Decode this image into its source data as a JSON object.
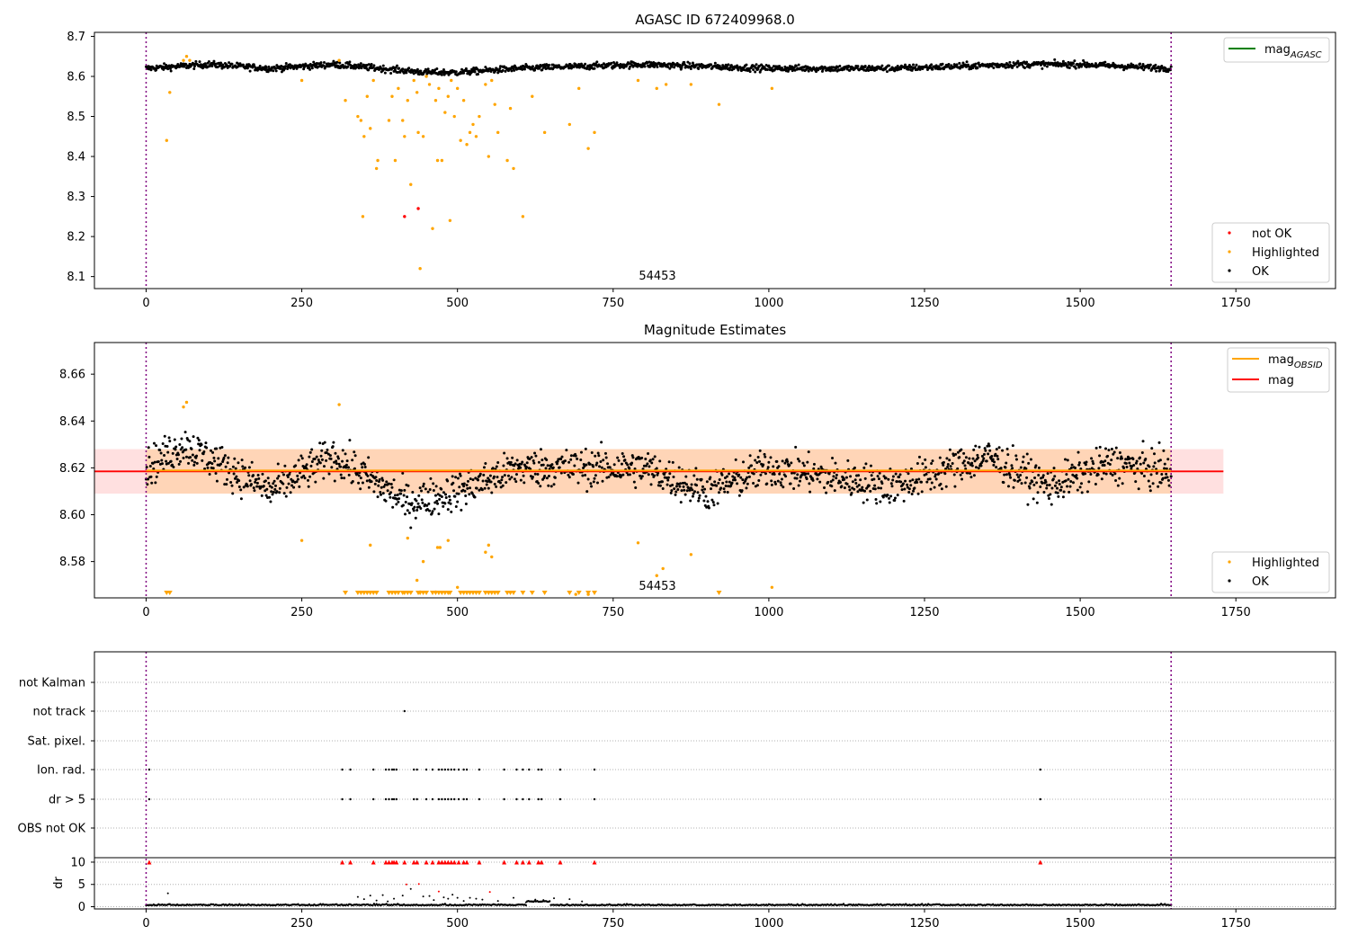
{
  "chart_data": [
    {
      "type": "scatter",
      "title": "AGASC ID 672409968.0",
      "xlim": [
        -83,
        1910
      ],
      "ylim": [
        8.07,
        8.71
      ],
      "x_ticks": [
        0,
        250,
        500,
        750,
        1000,
        1250,
        1500,
        1750
      ],
      "y_ticks": [
        8.1,
        8.2,
        8.3,
        8.4,
        8.5,
        8.6,
        8.7
      ],
      "y_tick_labels": [
        "8.1",
        "8.2",
        "8.3",
        "8.4",
        "8.5",
        "8.6",
        "8.7"
      ],
      "grid": false,
      "vlines": [
        0,
        1646
      ],
      "annotation": "54453",
      "legend_top": {
        "placement": "top-right",
        "entries": [
          {
            "label": "mag",
            "sub": "AGASC",
            "color": "#008000"
          }
        ]
      },
      "legend_bottom": {
        "placement": "bottom-right",
        "entries": [
          {
            "label": "not OK",
            "color": "#ff0000"
          },
          {
            "label": "Highlighted",
            "color": "#ffa500"
          },
          {
            "label": "OK",
            "color": "#000000"
          }
        ]
      },
      "series": [
        {
          "name": "OK",
          "color": "#000000",
          "baseline": 8.62,
          "points": [
            [
              0,
              8.62
            ],
            [
              100,
              8.63
            ],
            [
              200,
              8.62
            ],
            [
              300,
              8.63
            ],
            [
              450,
              8.61
            ],
            [
              500,
              8.61
            ],
            [
              600,
              8.62
            ],
            [
              800,
              8.63
            ],
            [
              1000,
              8.62
            ],
            [
              1200,
              8.62
            ],
            [
              1400,
              8.63
            ],
            [
              1500,
              8.63
            ],
            [
              1646,
              8.62
            ]
          ]
        },
        {
          "name": "Highlighted",
          "color": "#ffa500",
          "points": [
            [
              33,
              8.44
            ],
            [
              38,
              8.56
            ],
            [
              60,
              8.64
            ],
            [
              65,
              8.65
            ],
            [
              70,
              8.64
            ],
            [
              250,
              8.59
            ],
            [
              310,
              8.64
            ],
            [
              320,
              8.54
            ],
            [
              340,
              8.5
            ],
            [
              345,
              8.49
            ],
            [
              348,
              8.25
            ],
            [
              350,
              8.45
            ],
            [
              355,
              8.55
            ],
            [
              360,
              8.47
            ],
            [
              365,
              8.59
            ],
            [
              370,
              8.37
            ],
            [
              372,
              8.39
            ],
            [
              390,
              8.49
            ],
            [
              395,
              8.55
            ],
            [
              400,
              8.39
            ],
            [
              405,
              8.57
            ],
            [
              412,
              8.49
            ],
            [
              415,
              8.45
            ],
            [
              420,
              8.54
            ],
            [
              425,
              8.33
            ],
            [
              430,
              8.59
            ],
            [
              435,
              8.56
            ],
            [
              437,
              8.46
            ],
            [
              440,
              8.12
            ],
            [
              445,
              8.45
            ],
            [
              450,
              8.6
            ],
            [
              455,
              8.58
            ],
            [
              460,
              8.22
            ],
            [
              465,
              8.54
            ],
            [
              468,
              8.39
            ],
            [
              470,
              8.57
            ],
            [
              475,
              8.39
            ],
            [
              480,
              8.51
            ],
            [
              485,
              8.55
            ],
            [
              488,
              8.24
            ],
            [
              490,
              8.59
            ],
            [
              495,
              8.5
            ],
            [
              500,
              8.57
            ],
            [
              505,
              8.44
            ],
            [
              510,
              8.54
            ],
            [
              515,
              8.43
            ],
            [
              520,
              8.46
            ],
            [
              525,
              8.48
            ],
            [
              530,
              8.45
            ],
            [
              535,
              8.5
            ],
            [
              545,
              8.58
            ],
            [
              550,
              8.4
            ],
            [
              555,
              8.59
            ],
            [
              560,
              8.53
            ],
            [
              565,
              8.46
            ],
            [
              580,
              8.39
            ],
            [
              585,
              8.52
            ],
            [
              590,
              8.37
            ],
            [
              605,
              8.25
            ],
            [
              620,
              8.55
            ],
            [
              640,
              8.46
            ],
            [
              680,
              8.48
            ],
            [
              695,
              8.57
            ],
            [
              710,
              8.42
            ],
            [
              720,
              8.46
            ],
            [
              790,
              8.59
            ],
            [
              820,
              8.57
            ],
            [
              835,
              8.58
            ],
            [
              875,
              8.58
            ],
            [
              920,
              8.53
            ],
            [
              1005,
              8.57
            ]
          ]
        },
        {
          "name": "not OK",
          "color": "#ff0000",
          "points": [
            [
              415,
              8.25
            ],
            [
              437,
              8.27
            ]
          ]
        }
      ]
    },
    {
      "type": "scatter",
      "title": "Magnitude Estimates",
      "xlim": [
        -83,
        1910
      ],
      "ylim": [
        8.5645,
        8.6735
      ],
      "x_ticks": [
        0,
        250,
        500,
        750,
        1000,
        1250,
        1500,
        1750
      ],
      "y_ticks": [
        8.58,
        8.6,
        8.62,
        8.64,
        8.66
      ],
      "y_tick_labels": [
        "8.58",
        "8.60",
        "8.62",
        "8.64",
        "8.66"
      ],
      "grid": false,
      "vlines": [
        0,
        1646
      ],
      "annotation": "54453",
      "mag": 8.6185,
      "mag_obsid": 8.6185,
      "band": [
        8.609,
        8.628
      ],
      "band_x": [
        -83,
        1730
      ],
      "band2_x": [
        0,
        1646
      ],
      "legend_top": {
        "placement": "top-right",
        "entries": [
          {
            "label": "mag",
            "sub": "OBSID",
            "color": "#ffa500"
          },
          {
            "label": "mag",
            "color": "#ff0000"
          }
        ]
      },
      "legend_bottom": {
        "placement": "bottom-right",
        "entries": [
          {
            "label": "Highlighted",
            "color": "#ffa500"
          },
          {
            "label": "OK",
            "color": "#000000"
          }
        ]
      },
      "series": [
        {
          "name": "OK",
          "color": "#000000",
          "baseline": 8.619,
          "spread": 0.008,
          "points": [
            [
              0,
              8.62
            ],
            [
              60,
              8.63
            ],
            [
              200,
              8.61
            ],
            [
              300,
              8.625
            ],
            [
              420,
              8.605
            ],
            [
              500,
              8.61
            ],
            [
              600,
              8.62
            ],
            [
              800,
              8.62
            ],
            [
              900,
              8.61
            ],
            [
              1000,
              8.62
            ],
            [
              1200,
              8.612
            ],
            [
              1350,
              8.625
            ],
            [
              1450,
              8.612
            ],
            [
              1550,
              8.622
            ],
            [
              1646,
              8.618
            ]
          ]
        },
        {
          "name": "Highlighted",
          "color": "#ffa500",
          "points": [
            [
              60,
              8.646
            ],
            [
              65,
              8.648
            ],
            [
              250,
              8.589
            ],
            [
              310,
              8.647
            ],
            [
              360,
              8.587
            ],
            [
              420,
              8.59
            ],
            [
              435,
              8.572
            ],
            [
              440,
              8.567
            ],
            [
              445,
              8.58
            ],
            [
              465,
              8.567
            ],
            [
              468,
              8.586
            ],
            [
              472,
              8.586
            ],
            [
              485,
              8.589
            ],
            [
              500,
              8.569
            ],
            [
              545,
              8.584
            ],
            [
              550,
              8.587
            ],
            [
              555,
              8.582
            ],
            [
              690,
              8.566
            ],
            [
              710,
              8.566
            ],
            [
              790,
              8.588
            ],
            [
              820,
              8.574
            ],
            [
              830,
              8.577
            ],
            [
              875,
              8.583
            ],
            [
              1005,
              8.569
            ]
          ]
        },
        {
          "name": "Highlighted (below range)",
          "color": "#ffa500",
          "marker": "triangle-down",
          "x": [
            33,
            38,
            320,
            340,
            345,
            350,
            355,
            360,
            365,
            370,
            390,
            395,
            400,
            405,
            412,
            415,
            420,
            425,
            437,
            440,
            445,
            450,
            460,
            465,
            470,
            475,
            480,
            485,
            488,
            505,
            510,
            515,
            520,
            525,
            530,
            535,
            545,
            550,
            555,
            560,
            565,
            580,
            585,
            590,
            605,
            620,
            640,
            680,
            695,
            710,
            720,
            920
          ]
        }
      ]
    },
    {
      "type": "scatter",
      "title": "",
      "xlim": [
        -83,
        1910
      ],
      "x_ticks": [
        0,
        250,
        500,
        750,
        1000,
        1250,
        1500,
        1750
      ],
      "vlines": [
        0,
        1646
      ],
      "flag_rows": [
        "not Kalman",
        "not track",
        "Sat. pixel.",
        "Ion. rad.",
        "dr > 5",
        "OBS not OK"
      ],
      "flags": {
        "not Kalman": [],
        "not track": [
          415
        ],
        "Sat. pixel.": [],
        "Ion. rad.": [
          5,
          315,
          328,
          365,
          385,
          390,
          395,
          398,
          402,
          430,
          435,
          450,
          460,
          470,
          475,
          480,
          485,
          490,
          495,
          502,
          510,
          515,
          535,
          575,
          595,
          605,
          615,
          630,
          635,
          665,
          720,
          1436
        ],
        "dr > 5": [
          5,
          315,
          328,
          365,
          385,
          390,
          395,
          398,
          402,
          430,
          435,
          450,
          460,
          470,
          475,
          480,
          485,
          490,
          495,
          502,
          510,
          515,
          535,
          575,
          595,
          605,
          615,
          630,
          635,
          665,
          720,
          1436
        ],
        "OBS not OK": []
      },
      "dr_ylabel": "dr",
      "dr_ylim": [
        -0.5,
        11
      ],
      "dr_ticks": [
        0,
        5,
        10
      ],
      "dr_tick_labels": [
        "0",
        "5",
        "10"
      ],
      "dr_baseline": 0.3,
      "dr_capped_x": [
        5,
        315,
        328,
        365,
        385,
        390,
        395,
        398,
        402,
        415,
        430,
        435,
        450,
        460,
        470,
        475,
        480,
        485,
        490,
        495,
        502,
        510,
        515,
        535,
        575,
        595,
        605,
        615,
        630,
        635,
        665,
        720,
        1436
      ],
      "dr_points": [
        [
          35,
          3.0
        ],
        [
          340,
          2.2
        ],
        [
          350,
          1.7
        ],
        [
          360,
          2.5
        ],
        [
          370,
          1.4
        ],
        [
          380,
          2.6
        ],
        [
          388,
          1.2
        ],
        [
          398,
          1.8
        ],
        [
          412,
          2.5
        ],
        [
          418,
          5.0
        ],
        [
          425,
          4.0
        ],
        [
          438,
          5.1
        ],
        [
          445,
          2.3
        ],
        [
          455,
          2.4
        ],
        [
          462,
          1.5
        ],
        [
          470,
          3.4
        ],
        [
          478,
          2.1
        ],
        [
          485,
          1.8
        ],
        [
          492,
          2.7
        ],
        [
          500,
          2.0
        ],
        [
          510,
          1.3
        ],
        [
          520,
          2.0
        ],
        [
          530,
          1.8
        ],
        [
          540,
          1.6
        ],
        [
          552,
          3.3
        ],
        [
          565,
          1.3
        ],
        [
          590,
          2.0
        ],
        [
          610,
          1.0
        ],
        [
          625,
          1.6
        ],
        [
          638,
          1.5
        ],
        [
          655,
          1.9
        ],
        [
          680,
          1.7
        ],
        [
          700,
          1.2
        ]
      ]
    }
  ]
}
